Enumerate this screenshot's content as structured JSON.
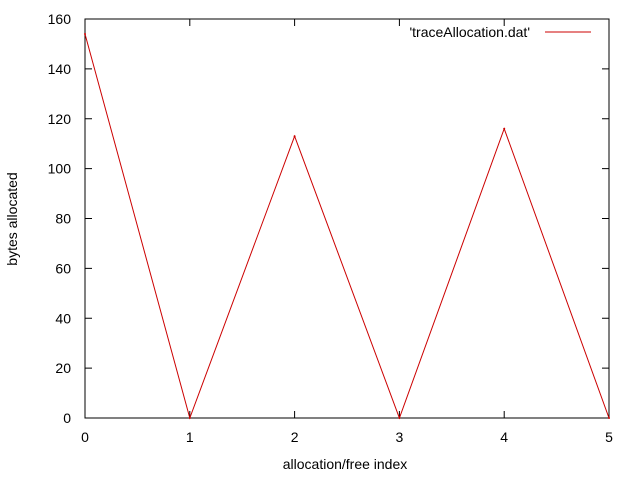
{
  "chart_data": {
    "type": "line",
    "xlabel": "allocation/free index",
    "ylabel": "bytes allocated",
    "xlim": [
      0,
      5
    ],
    "ylim": [
      0,
      160
    ],
    "xticks": [
      0,
      1,
      2,
      3,
      4,
      5
    ],
    "yticks": [
      0,
      20,
      40,
      60,
      80,
      100,
      120,
      140,
      160
    ],
    "grid": false,
    "legend_position": "top-right",
    "series": [
      {
        "name": "'traceAllocation.dat'",
        "color": "#cc0000",
        "x": [
          0,
          1,
          2,
          3,
          4,
          5
        ],
        "y": [
          154,
          0,
          113,
          0,
          116,
          0
        ]
      }
    ]
  }
}
